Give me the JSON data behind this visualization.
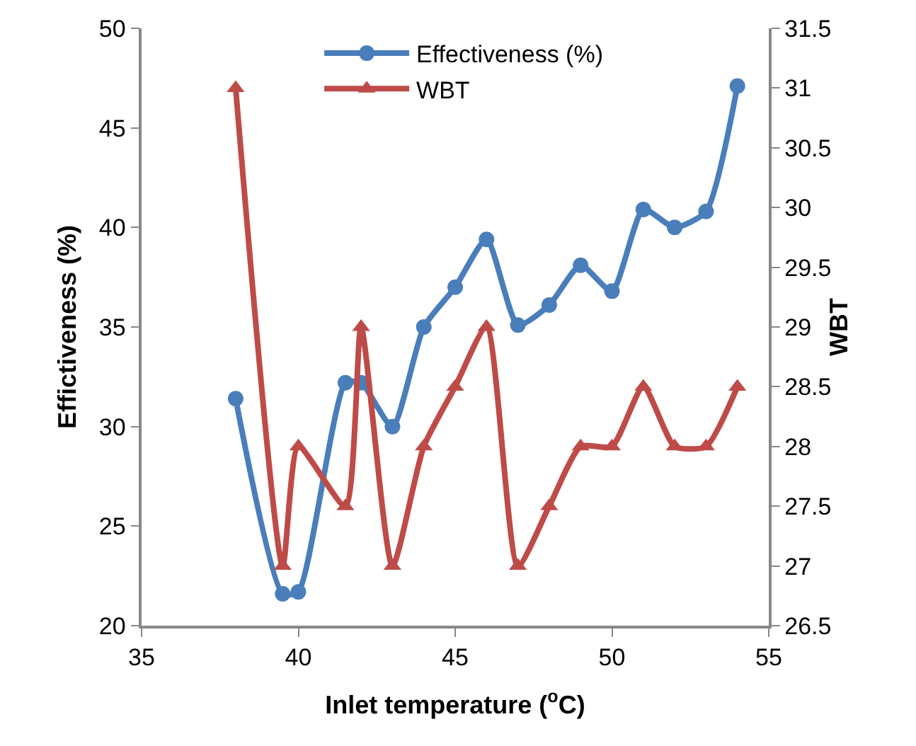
{
  "chart_data": {
    "type": "line",
    "xlabel": "Inlet temperature ($^{o}$C)",
    "ylabel": "Effictiveness (%)",
    "y2label": "WBT",
    "x": [
      38,
      39.5,
      40,
      41.5,
      42,
      43,
      44,
      45,
      46,
      47,
      48,
      49,
      50,
      51,
      52,
      53,
      54
    ],
    "series": [
      {
        "name": "Effectiveness (%)",
        "color": "#4a7ebb",
        "marker": "circle",
        "values": [
          31.4,
          21.6,
          21.7,
          32.2,
          32.2,
          30,
          35,
          37,
          39.4,
          35.1,
          36.1,
          38.1,
          36.8,
          40.9,
          40,
          40.8,
          47.1
        ]
      },
      {
        "name": "WBT",
        "color": "#be4b48",
        "marker": "triangle",
        "axis": "y2",
        "values": [
          31,
          27,
          28,
          27.5,
          29,
          27,
          28,
          28.5,
          29,
          27,
          27.5,
          28,
          28,
          28.5,
          28,
          28,
          28.5
        ]
      }
    ],
    "xlim": [
      35,
      55
    ],
    "xticks": [
      35,
      40,
      45,
      50,
      55
    ],
    "ylim": [
      20,
      50
    ],
    "yticks": [
      20,
      25,
      30,
      35,
      40,
      45,
      50
    ],
    "y2lim": [
      26.5,
      31.5
    ],
    "y2ticks": [
      26.5,
      27,
      27.5,
      28,
      28.5,
      29,
      29.5,
      30,
      30.5,
      31,
      31.5
    ],
    "grid": false,
    "legend": "top"
  }
}
